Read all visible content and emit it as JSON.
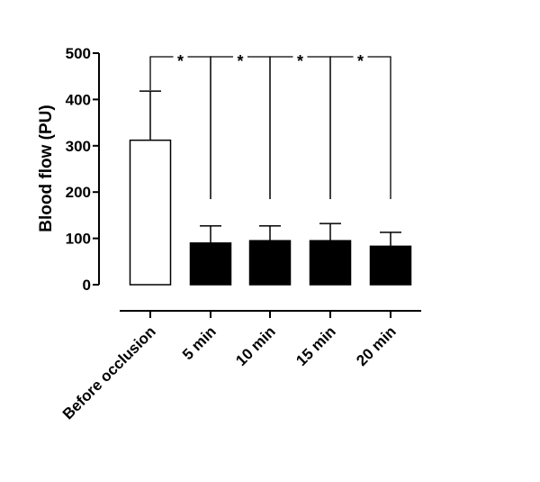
{
  "chart_data": {
    "type": "bar",
    "title": "",
    "xlabel": "",
    "ylabel": "Blood flow (PU)",
    "ylim": [
      0,
      500
    ],
    "yticks": [
      0,
      100,
      200,
      300,
      400,
      500
    ],
    "grid": false,
    "legend": "none",
    "categories": [
      "Before occlusion",
      "5 min",
      "10 min",
      "15 min",
      "20 min"
    ],
    "values": [
      312,
      90,
      95,
      95,
      83
    ],
    "error_upper": [
      418,
      127,
      127,
      132,
      113
    ],
    "bar_fill": [
      "#ffffff",
      "#000000",
      "#000000",
      "#000000",
      "#000000"
    ],
    "significance": [
      {
        "from": 0,
        "to": 1,
        "label": "*"
      },
      {
        "from": 1,
        "to": 2,
        "label": "*"
      },
      {
        "from": 2,
        "to": 3,
        "label": "*"
      },
      {
        "from": 3,
        "to": 4,
        "label": "*"
      }
    ]
  }
}
